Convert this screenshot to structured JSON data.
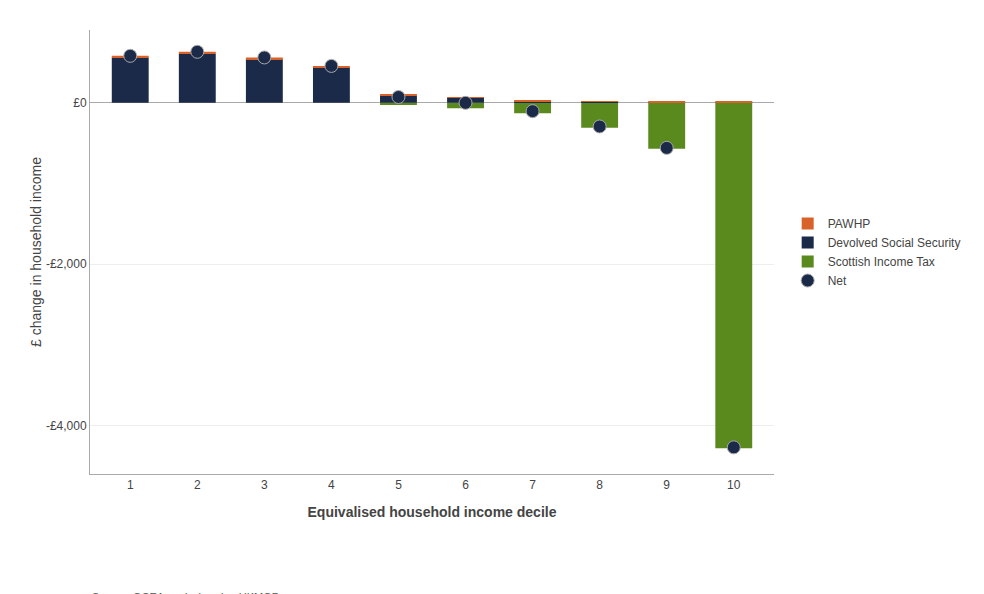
{
  "chart_data": {
    "type": "bar",
    "stacked": true,
    "xlabel": "Equivalised household income decile",
    "ylabel": "£ change in household income",
    "annotations": [
      "Source: OCEA analysis using UKMOD"
    ],
    "x": [
      1,
      2,
      3,
      4,
      5,
      6,
      7,
      8,
      9,
      10
    ],
    "xlim": [
      0.4,
      10.6
    ],
    "xticks": [
      1,
      2,
      3,
      4,
      5,
      6,
      7,
      8,
      9,
      10
    ],
    "ylim": [
      -4600,
      900
    ],
    "yticks": [
      {
        "value": 0,
        "label": "£0"
      },
      {
        "value": -2000,
        "label": "-£2,000"
      },
      {
        "value": -4000,
        "label": "-£4,000"
      }
    ],
    "grid": "y",
    "legend": "right",
    "series": [
      {
        "name": "Scottish Income Tax",
        "type": "bar",
        "color": "#5a8a1e",
        "values": [
          0,
          0,
          0,
          0,
          -30,
          -70,
          -130,
          -310,
          -570,
          -4280
        ]
      },
      {
        "name": "Devolved Social Security",
        "type": "bar",
        "color": "#1b2a48",
        "values": [
          560,
          610,
          540,
          440,
          90,
          60,
          20,
          10,
          5,
          5
        ]
      },
      {
        "name": "PAWHP",
        "type": "bar",
        "color": "#d9622b",
        "values": [
          20,
          20,
          20,
          15,
          10,
          8,
          5,
          5,
          5,
          5
        ]
      },
      {
        "name": "Net",
        "type": "scatter",
        "marker": "circle",
        "color": "#1b2a48",
        "values": [
          580,
          630,
          560,
          455,
          70,
          -2,
          -105,
          -295,
          -560,
          -4270
        ]
      }
    ]
  }
}
